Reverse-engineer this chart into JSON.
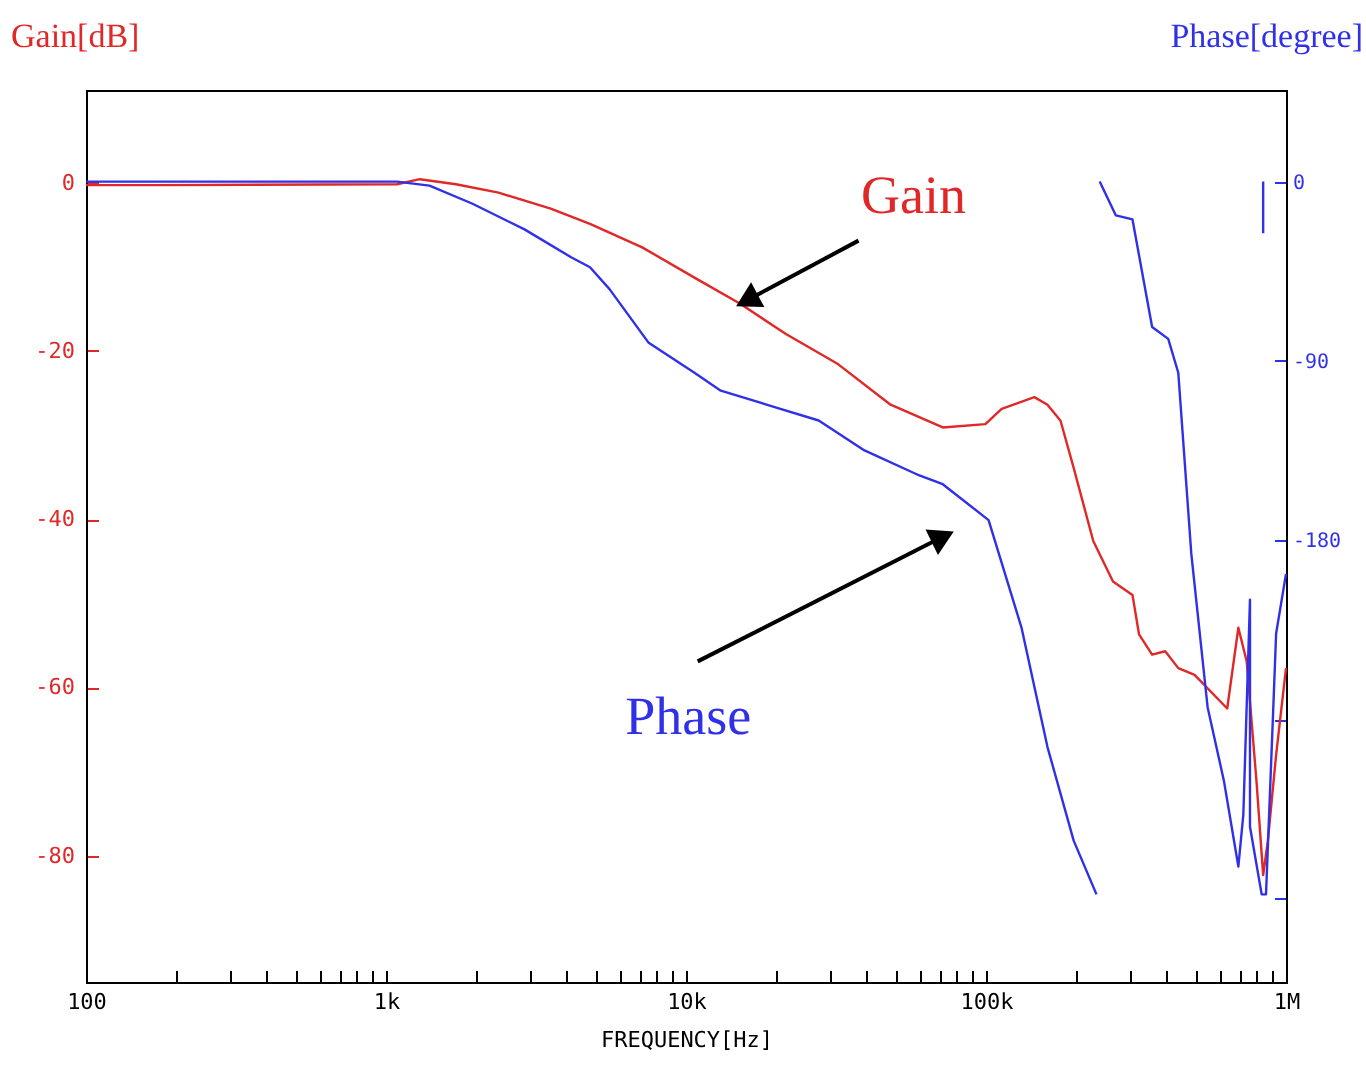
{
  "chart_data": {
    "type": "line",
    "log": "x",
    "grid": false,
    "xlabel": "FREQUENCY[Hz]",
    "ylabel": "Gain[dB]",
    "y2label": "Phase[degree]",
    "xlim": [
      100,
      1000000
    ],
    "xticks": [
      100,
      {
        "value": 200,
        "label": null
      },
      {
        "value": 300,
        "label": null
      },
      {
        "value": 400,
        "label": null
      },
      {
        "value": 500,
        "label": null
      },
      {
        "value": 600,
        "label": null
      },
      {
        "value": 700,
        "label": null
      },
      {
        "value": 800,
        "label": null
      },
      {
        "value": 900,
        "label": null
      },
      {
        "value": 1000,
        "label": "1k"
      },
      {
        "value": 2000,
        "label": null
      },
      {
        "value": 3000,
        "label": null
      },
      {
        "value": 4000,
        "label": null
      },
      {
        "value": 5000,
        "label": null
      },
      {
        "value": 6000,
        "label": null
      },
      {
        "value": 7000,
        "label": null
      },
      {
        "value": 8000,
        "label": null
      },
      {
        "value": 9000,
        "label": null
      },
      {
        "value": 10000,
        "label": "10k"
      },
      {
        "value": 20000,
        "label": null
      },
      {
        "value": 30000,
        "label": null
      },
      {
        "value": 40000,
        "label": null
      },
      {
        "value": 50000,
        "label": null
      },
      {
        "value": 60000,
        "label": null
      },
      {
        "value": 70000,
        "label": null
      },
      {
        "value": 80000,
        "label": null
      },
      {
        "value": 90000,
        "label": null
      },
      {
        "value": 100000,
        "label": "100k"
      },
      {
        "value": 200000,
        "label": null
      },
      {
        "value": 300000,
        "label": null
      },
      {
        "value": 400000,
        "label": null
      },
      {
        "value": 500000,
        "label": null
      },
      {
        "value": 600000,
        "label": null
      },
      {
        "value": 700000,
        "label": null
      },
      {
        "value": 800000,
        "label": null
      },
      {
        "value": 900000,
        "label": null
      },
      {
        "value": 1000000,
        "label": "1M"
      }
    ],
    "ylim": [
      -95,
      11
    ],
    "yticks": [
      0,
      -20,
      -40,
      -60,
      -80
    ],
    "y2lim": [
      -402,
      46
    ],
    "y2ticks": [
      0,
      -90,
      -180,
      {
        "value": -270,
        "label": null
      },
      {
        "value": -360,
        "label": null
      }
    ],
    "series": [
      {
        "name": "Gain",
        "color": "#e02828",
        "x": [
          100,
          170,
          1088,
          1297,
          1710,
          2372,
          3540,
          4786,
          7145,
          10670,
          15160,
          21530,
          32190,
          48080,
          71760,
          99500,
          112800,
          144900,
          160300,
          177200,
          196000,
          227800,
          265000,
          307800,
          323700,
          357900,
          395700,
          437500,
          495700,
          636800,
          693700,
          739600,
          797500,
          839200,
          869500,
          927000,
          1000000
        ],
        "values": [
          -0.3,
          -0.3,
          -0.2,
          0.4,
          -0.2,
          -1.2,
          -3.1,
          -4.9,
          -7.7,
          -11.3,
          -14.4,
          -18,
          -21.6,
          -26.4,
          -29.1,
          -28.7,
          -26.9,
          -25.5,
          -26.4,
          -28.3,
          -33.9,
          -42.6,
          -47.4,
          -49,
          -53.7,
          -56.1,
          -55.7,
          -57.7,
          -58.5,
          -62.5,
          -52.9,
          -56.9,
          -71.2,
          -82.3,
          -78.3,
          -68,
          -57.7
        ]
      },
      {
        "name": "Phase",
        "color": "#3030e8",
        "axis": "y2",
        "x": [
          100,
          1088,
          1396,
          1935,
          2895,
          4140,
          4786,
          5560,
          7510,
          10670,
          13060,
          19500,
          27690,
          39350,
          58740,
          71760,
          102000,
          131300,
          160300,
          196000,
          233500,
          236000,
          239300,
          271000,
          307800,
          357900,
          405000,
          437500,
          483500,
          547900,
          621000,
          693700,
          720700,
          758500,
          758500,
          829700,
          857700,
          905600,
          927000,
          1000000,
          900000,
          839200,
          839200
        ],
        "values": [
          0,
          0,
          -2,
          -11,
          -24,
          -38,
          -43,
          -54,
          -81,
          -96,
          -105,
          -113,
          -120,
          -135,
          -147,
          -152,
          -170,
          -224,
          -284,
          -331,
          -358,
          null,
          0,
          -17,
          -19,
          -73,
          -79,
          -96,
          -187,
          -264,
          -301,
          -344,
          -318,
          -210,
          -324,
          -358,
          -358,
          -267,
          -227,
          -197,
          null,
          0,
          -26
        ]
      }
    ]
  }
}
